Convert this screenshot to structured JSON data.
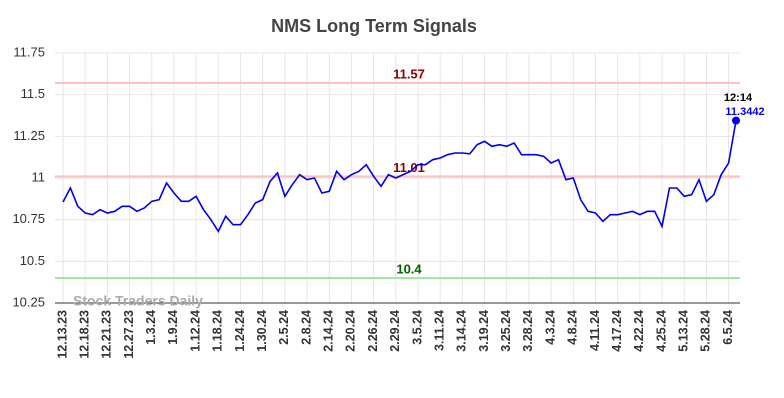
{
  "chart_data": {
    "type": "line",
    "title": "NMS Long Term Signals",
    "categories": [
      "12.13.23",
      null,
      null,
      "12.18.23",
      null,
      null,
      "12.21.23",
      null,
      null,
      "12.27.23",
      null,
      null,
      "1.3.24",
      null,
      null,
      "1.9.24",
      null,
      null,
      "1.12.24",
      null,
      null,
      "1.18.24",
      null,
      null,
      "1.24.24",
      null,
      null,
      "1.30.24",
      null,
      null,
      "2.5.24",
      null,
      null,
      "2.8.24",
      null,
      null,
      "2.14.24",
      null,
      null,
      "2.20.24",
      null,
      null,
      "2.26.24",
      null,
      null,
      "2.29.24",
      null,
      null,
      "3.5.24",
      null,
      null,
      "3.11.24",
      null,
      null,
      "3.14.24",
      null,
      null,
      "3.19.24",
      null,
      null,
      "3.25.24",
      null,
      null,
      "3.28.24",
      null,
      null,
      "4.3.24",
      null,
      null,
      "4.8.24",
      null,
      null,
      "4.11.24",
      null,
      null,
      "4.17.24",
      null,
      null,
      "4.22.24",
      null,
      null,
      "4.25.24",
      null,
      null,
      "5.13.24",
      null,
      null,
      "5.28.24",
      null,
      null,
      "6.5.24",
      null
    ],
    "values": [
      10.856,
      10.94,
      10.83,
      10.79,
      10.78,
      10.81,
      10.79,
      10.8,
      10.83,
      10.83,
      10.8,
      10.82,
      10.86,
      10.87,
      10.97,
      10.91,
      10.86,
      10.86,
      10.89,
      10.81,
      10.75,
      10.68,
      10.77,
      10.72,
      10.72,
      10.78,
      10.85,
      10.87,
      10.98,
      11.03,
      10.89,
      10.96,
      11.02,
      10.99,
      11.0,
      10.91,
      10.92,
      11.04,
      10.99,
      11.02,
      11.04,
      11.08,
      11.01,
      10.95,
      11.02,
      11.0,
      11.02,
      11.04,
      11.08,
      11.08,
      11.11,
      11.12,
      11.14,
      11.15,
      11.15,
      11.145,
      11.2,
      11.22,
      11.19,
      11.2,
      11.19,
      11.21,
      11.14,
      11.14,
      11.14,
      11.13,
      11.09,
      11.11,
      10.99,
      11.0,
      10.87,
      10.8,
      10.79,
      10.74,
      10.78,
      10.78,
      10.79,
      10.8,
      10.78,
      10.8,
      10.8,
      10.71,
      10.94,
      10.94,
      10.89,
      10.9,
      10.99,
      10.86,
      10.9,
      11.02,
      11.09,
      11.3442
    ],
    "color": "#0000ee",
    "last_time": "12:14",
    "hlines": [
      {
        "value": 11.57,
        "color": "#ffc0c0",
        "text_color": "#8b0000"
      },
      {
        "value": 11.01,
        "color": "#ffc0c0",
        "text_color": "#8b0000"
      },
      {
        "value": 10.4,
        "color": "#a0e8a0",
        "text_color": "#006400"
      }
    ],
    "watermark": "Stock Traders Daily",
    "ylim": [
      10.25,
      11.75
    ],
    "yticks": [
      10.25,
      10.5,
      10.75,
      11,
      11.25,
      11.5,
      11.75
    ],
    "grid": true
  }
}
